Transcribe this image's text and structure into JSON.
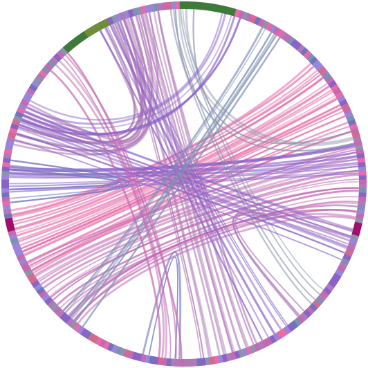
{
  "diagram": {
    "type": "chord",
    "background": "#ffffff",
    "palette": {
      "lavender": "#9a86d8",
      "violet": "#8a63c9",
      "orchid": "#c46ab3",
      "pink": "#e86aa8",
      "mauve": "#b07ab8",
      "slate_blue": "#6f73c0",
      "steel": "#7f8fb5",
      "grey_blue": "#8b93ad",
      "green": "#3e7a3a",
      "olive": "#6f8d3a",
      "magenta": "#a0106a",
      "rose": "#d46a8e"
    },
    "ring": {
      "segment_count": 260,
      "segment_colors": [
        "lavender",
        "violet",
        "orchid",
        "slate_blue",
        "pink",
        "mauve",
        "steel",
        "grey_blue",
        "rose",
        "lavender",
        "orchid",
        "violet"
      ],
      "accent_segments": [
        {
          "start_deg": 268,
          "end_deg": 286,
          "color": "green"
        },
        {
          "start_deg": 228,
          "end_deg": 238,
          "color": "green"
        },
        {
          "start_deg": 236,
          "end_deg": 244,
          "color": "olive"
        },
        {
          "start_deg": 12,
          "end_deg": 16,
          "color": "magenta"
        },
        {
          "start_deg": 164,
          "end_deg": 168,
          "color": "magenta"
        }
      ]
    },
    "bundles": [
      {
        "from_deg": -30,
        "to_deg": 160,
        "count": 26,
        "spread_a": 26,
        "spread_b": 22,
        "color": "pink",
        "tension": 0.55
      },
      {
        "from_deg": 0,
        "to_deg": 140,
        "count": 22,
        "spread_a": 24,
        "spread_b": 26,
        "color": "orchid",
        "tension": 0.45
      },
      {
        "from_deg": -8,
        "to_deg": 182,
        "count": 10,
        "spread_a": 10,
        "spread_b": 8,
        "color": "violet",
        "tension": 0.5
      },
      {
        "from_deg": 250,
        "to_deg": 200,
        "count": 14,
        "spread_a": 16,
        "spread_b": 14,
        "color": "mauve",
        "tension": 0.75
      },
      {
        "from_deg": 255,
        "to_deg": 75,
        "count": 14,
        "spread_a": 14,
        "spread_b": 20,
        "color": "mauve",
        "tension": 0.35
      },
      {
        "from_deg": 246,
        "to_deg": 58,
        "count": 6,
        "spread_a": 8,
        "spread_b": 10,
        "color": "violet",
        "tension": 0.4
      },
      {
        "from_deg": 268,
        "to_deg": 40,
        "count": 4,
        "spread_a": 4,
        "spread_b": 6,
        "color": "grey_blue",
        "tension": 0.4
      },
      {
        "from_deg": 200,
        "to_deg": 20,
        "count": 8,
        "spread_a": 10,
        "spread_b": 10,
        "color": "violet",
        "tension": 0.25
      },
      {
        "from_deg": 186,
        "to_deg": 176,
        "count": 3,
        "spread_a": 3,
        "spread_b": 3,
        "color": "slate_blue",
        "tension": 0.88
      },
      {
        "from_deg": 102,
        "to_deg": 92,
        "count": 2,
        "spread_a": 2,
        "spread_b": 2,
        "color": "slate_blue",
        "tension": 0.82
      },
      {
        "from_deg": 300,
        "to_deg": 130,
        "count": 6,
        "spread_a": 6,
        "spread_b": 8,
        "color": "steel",
        "tension": 0.4
      },
      {
        "from_deg": 270,
        "to_deg": 345,
        "count": 4,
        "spread_a": 6,
        "spread_b": 4,
        "color": "grey_blue",
        "tension": 0.6
      },
      {
        "from_deg": 48,
        "to_deg": 18,
        "count": 3,
        "spread_a": 4,
        "spread_b": 4,
        "color": "mauve",
        "tension": 0.8
      },
      {
        "from_deg": 225,
        "to_deg": 95,
        "count": 6,
        "spread_a": 8,
        "spread_b": 8,
        "color": "orchid",
        "tension": 0.45
      },
      {
        "from_deg": 285,
        "to_deg": 205,
        "count": 5,
        "spread_a": 6,
        "spread_b": 6,
        "color": "violet",
        "tension": 0.6
      }
    ]
  }
}
